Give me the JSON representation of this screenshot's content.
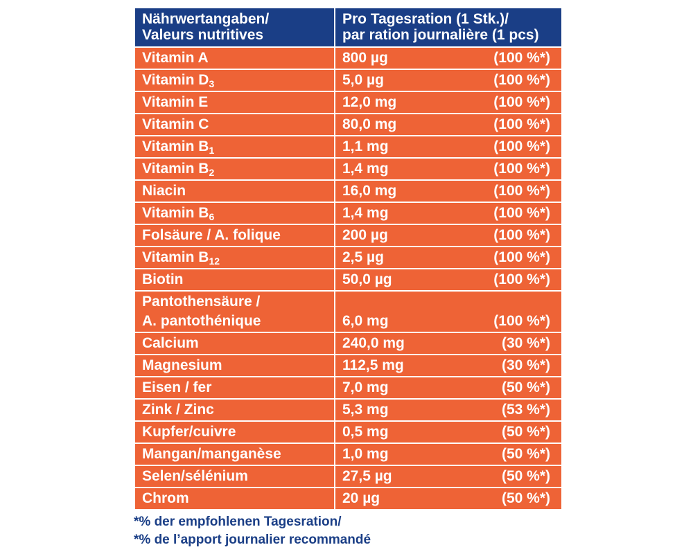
{
  "header": {
    "col1_line1": "Nährwertangaben/",
    "col1_line2": "Valeurs nutritives",
    "col2_line1": "Pro Tagesration (1 Stk.)/",
    "col2_line2": "par ration journalière (1 pcs)"
  },
  "rows": [
    {
      "name": "Vitamin A",
      "sub": "",
      "amount": "800 µg",
      "pct": "(100 %*)"
    },
    {
      "name": "Vitamin D",
      "sub": "3",
      "amount": "5,0 µg",
      "pct": "(100 %*)"
    },
    {
      "name": "Vitamin E",
      "sub": "",
      "amount": "12,0 mg",
      "pct": "(100 %*)"
    },
    {
      "name": "Vitamin C",
      "sub": "",
      "amount": "80,0 mg",
      "pct": "(100 %*)"
    },
    {
      "name": "Vitamin B",
      "sub": "1",
      "amount": "1,1 mg",
      "pct": "(100 %*)"
    },
    {
      "name": "Vitamin B",
      "sub": "2",
      "amount": "1,4 mg",
      "pct": "(100 %*)"
    },
    {
      "name": "Niacin",
      "sub": "",
      "amount": "16,0 mg",
      "pct": "(100 %*)"
    },
    {
      "name": "Vitamin B",
      "sub": "6",
      "amount": "1,4 mg",
      "pct": "(100 %*)"
    },
    {
      "name": "Folsäure / A. folique",
      "sub": "",
      "amount": "200 µg",
      "pct": "(100 %*)"
    },
    {
      "name": "Vitamin B",
      "sub": "12",
      "amount": "2,5 µg",
      "pct": "(100 %*)"
    },
    {
      "name": "Biotin",
      "sub": "",
      "amount": "50,0 µg",
      "pct": "(100 %*)"
    },
    {
      "name": "Pantothensäure /",
      "name2": "A. pantothénique",
      "sub": "",
      "amount": "6,0 mg",
      "pct": "(100 %*)"
    },
    {
      "name": "Calcium",
      "sub": "",
      "amount": "240,0 mg",
      "pct": "(30 %*)"
    },
    {
      "name": "Magnesium",
      "sub": "",
      "amount": "112,5 mg",
      "pct": "(30 %*)"
    },
    {
      "name": "Eisen / fer",
      "sub": "",
      "amount": "7,0 mg",
      "pct": "(50 %*)"
    },
    {
      "name": "Zink / Zinc",
      "sub": "",
      "amount": "5,3 mg",
      "pct": "(53 %*)"
    },
    {
      "name": "Kupfer/cuivre",
      "sub": "",
      "amount": "0,5 mg",
      "pct": "(50 %*)"
    },
    {
      "name": "Mangan/manganèse",
      "sub": "",
      "amount": "1,0 mg",
      "pct": "(50 %*)"
    },
    {
      "name": "Selen/sélénium",
      "sub": "",
      "amount": "27,5 µg",
      "pct": "(50 %*)"
    },
    {
      "name": "Chrom",
      "sub": "",
      "amount": "20 µg",
      "pct": "(50 %*)"
    }
  ],
  "footnote": {
    "line1": "*% der empfohlenen Tagesration/",
    "line2": "*% de l’apport journalier recommandé"
  },
  "colors": {
    "header_bg": "#1a3e86",
    "row_bg": "#ee6336",
    "text_light": "#ffffff",
    "footnote_text": "#1a3e86"
  }
}
